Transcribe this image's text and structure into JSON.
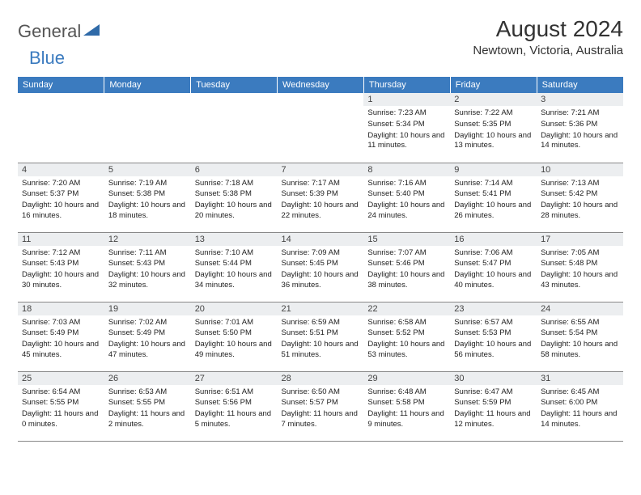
{
  "logo": {
    "text1": "General",
    "text2": "Blue",
    "color1": "#555555",
    "color2": "#3b7bbf"
  },
  "title": {
    "month": "August 2024",
    "location": "Newtown, Victoria, Australia"
  },
  "headerColor": "#3b7bbf",
  "dayHeaders": [
    "Sunday",
    "Monday",
    "Tuesday",
    "Wednesday",
    "Thursday",
    "Friday",
    "Saturday"
  ],
  "weeks": [
    [
      null,
      null,
      null,
      null,
      {
        "n": "1",
        "sr": "7:23 AM",
        "ss": "5:34 PM",
        "dl": "10 hours and 11 minutes."
      },
      {
        "n": "2",
        "sr": "7:22 AM",
        "ss": "5:35 PM",
        "dl": "10 hours and 13 minutes."
      },
      {
        "n": "3",
        "sr": "7:21 AM",
        "ss": "5:36 PM",
        "dl": "10 hours and 14 minutes."
      }
    ],
    [
      {
        "n": "4",
        "sr": "7:20 AM",
        "ss": "5:37 PM",
        "dl": "10 hours and 16 minutes."
      },
      {
        "n": "5",
        "sr": "7:19 AM",
        "ss": "5:38 PM",
        "dl": "10 hours and 18 minutes."
      },
      {
        "n": "6",
        "sr": "7:18 AM",
        "ss": "5:38 PM",
        "dl": "10 hours and 20 minutes."
      },
      {
        "n": "7",
        "sr": "7:17 AM",
        "ss": "5:39 PM",
        "dl": "10 hours and 22 minutes."
      },
      {
        "n": "8",
        "sr": "7:16 AM",
        "ss": "5:40 PM",
        "dl": "10 hours and 24 minutes."
      },
      {
        "n": "9",
        "sr": "7:14 AM",
        "ss": "5:41 PM",
        "dl": "10 hours and 26 minutes."
      },
      {
        "n": "10",
        "sr": "7:13 AM",
        "ss": "5:42 PM",
        "dl": "10 hours and 28 minutes."
      }
    ],
    [
      {
        "n": "11",
        "sr": "7:12 AM",
        "ss": "5:43 PM",
        "dl": "10 hours and 30 minutes."
      },
      {
        "n": "12",
        "sr": "7:11 AM",
        "ss": "5:43 PM",
        "dl": "10 hours and 32 minutes."
      },
      {
        "n": "13",
        "sr": "7:10 AM",
        "ss": "5:44 PM",
        "dl": "10 hours and 34 minutes."
      },
      {
        "n": "14",
        "sr": "7:09 AM",
        "ss": "5:45 PM",
        "dl": "10 hours and 36 minutes."
      },
      {
        "n": "15",
        "sr": "7:07 AM",
        "ss": "5:46 PM",
        "dl": "10 hours and 38 minutes."
      },
      {
        "n": "16",
        "sr": "7:06 AM",
        "ss": "5:47 PM",
        "dl": "10 hours and 40 minutes."
      },
      {
        "n": "17",
        "sr": "7:05 AM",
        "ss": "5:48 PM",
        "dl": "10 hours and 43 minutes."
      }
    ],
    [
      {
        "n": "18",
        "sr": "7:03 AM",
        "ss": "5:49 PM",
        "dl": "10 hours and 45 minutes."
      },
      {
        "n": "19",
        "sr": "7:02 AM",
        "ss": "5:49 PM",
        "dl": "10 hours and 47 minutes."
      },
      {
        "n": "20",
        "sr": "7:01 AM",
        "ss": "5:50 PM",
        "dl": "10 hours and 49 minutes."
      },
      {
        "n": "21",
        "sr": "6:59 AM",
        "ss": "5:51 PM",
        "dl": "10 hours and 51 minutes."
      },
      {
        "n": "22",
        "sr": "6:58 AM",
        "ss": "5:52 PM",
        "dl": "10 hours and 53 minutes."
      },
      {
        "n": "23",
        "sr": "6:57 AM",
        "ss": "5:53 PM",
        "dl": "10 hours and 56 minutes."
      },
      {
        "n": "24",
        "sr": "6:55 AM",
        "ss": "5:54 PM",
        "dl": "10 hours and 58 minutes."
      }
    ],
    [
      {
        "n": "25",
        "sr": "6:54 AM",
        "ss": "5:55 PM",
        "dl": "11 hours and 0 minutes."
      },
      {
        "n": "26",
        "sr": "6:53 AM",
        "ss": "5:55 PM",
        "dl": "11 hours and 2 minutes."
      },
      {
        "n": "27",
        "sr": "6:51 AM",
        "ss": "5:56 PM",
        "dl": "11 hours and 5 minutes."
      },
      {
        "n": "28",
        "sr": "6:50 AM",
        "ss": "5:57 PM",
        "dl": "11 hours and 7 minutes."
      },
      {
        "n": "29",
        "sr": "6:48 AM",
        "ss": "5:58 PM",
        "dl": "11 hours and 9 minutes."
      },
      {
        "n": "30",
        "sr": "6:47 AM",
        "ss": "5:59 PM",
        "dl": "11 hours and 12 minutes."
      },
      {
        "n": "31",
        "sr": "6:45 AM",
        "ss": "6:00 PM",
        "dl": "11 hours and 14 minutes."
      }
    ]
  ],
  "labels": {
    "sunrise": "Sunrise: ",
    "sunset": "Sunset: ",
    "daylight": "Daylight: "
  }
}
